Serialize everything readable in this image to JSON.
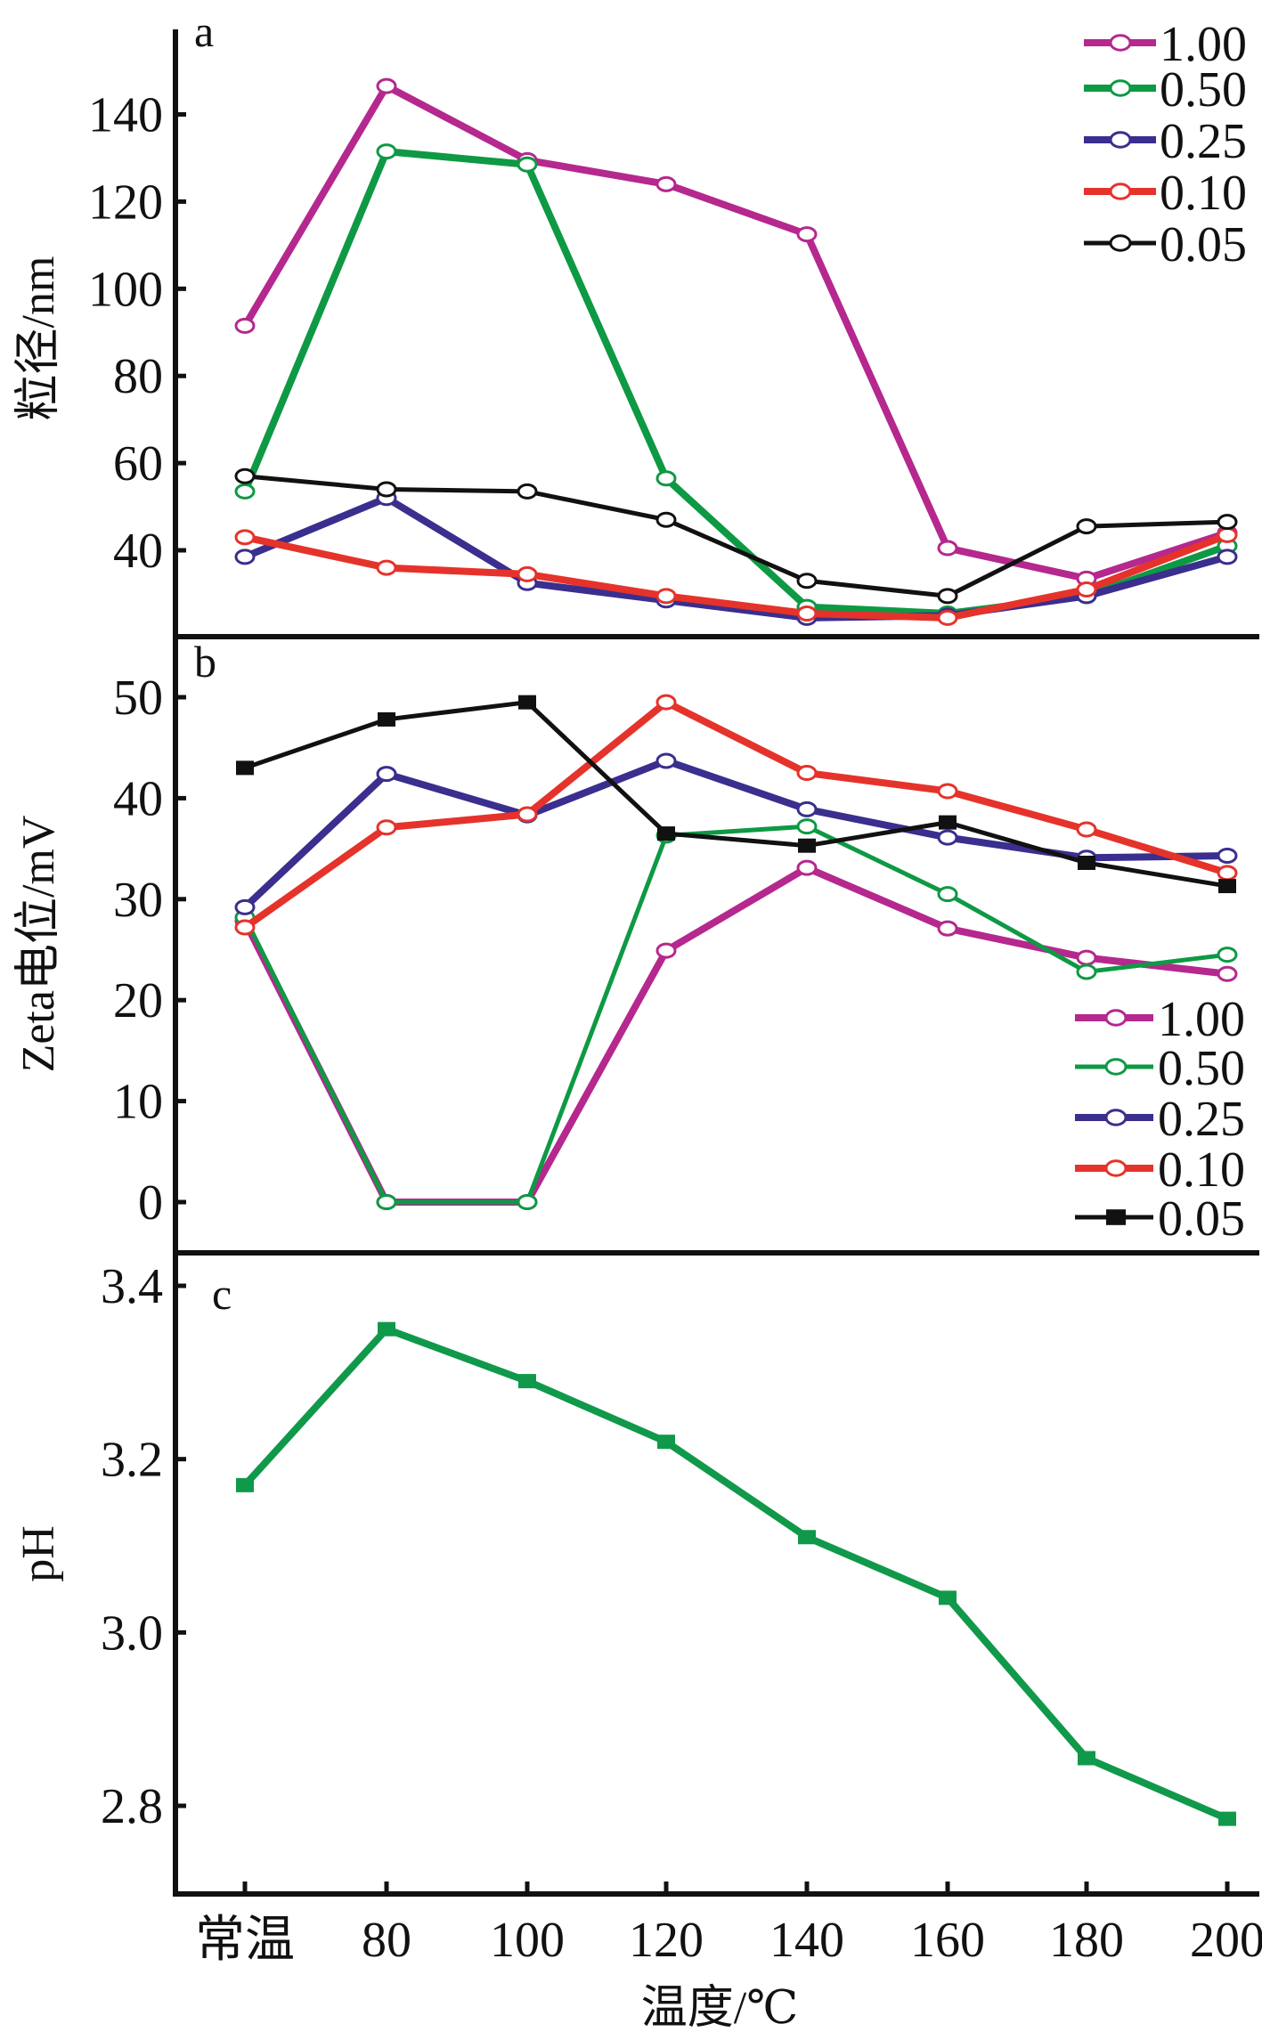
{
  "colors": {
    "s100": "#b5288e",
    "s050": "#0e9944",
    "s025": "#3a2e8e",
    "s010": "#e5332b",
    "s005": "#111111",
    "ph": "#10994a",
    "axis": "#111111"
  },
  "chart_data": [
    {
      "id": "a",
      "panel_label": "a",
      "type": "line",
      "title": "",
      "xlabel": "",
      "ylabel": "粒径/nm",
      "categories": [
        "常温",
        "80",
        "100",
        "120",
        "140",
        "160",
        "180",
        "200"
      ],
      "ylim": [
        20,
        160
      ],
      "yticks": [
        40,
        60,
        80,
        100,
        120,
        140
      ],
      "ytick_labels": [
        "40",
        "60",
        "80",
        "100",
        "120",
        "140"
      ],
      "grid": false,
      "legend_position": "top-right",
      "series": [
        {
          "name": "1.00",
          "color_key": "s100",
          "marker": "open-circle",
          "width": "thick",
          "values": [
            91.5,
            146.5,
            129.5,
            124,
            112.5,
            40.5,
            33.5,
            44
          ]
        },
        {
          "name": "0.50",
          "color_key": "s050",
          "marker": "open-circle",
          "width": "thick",
          "values": [
            53.5,
            131.5,
            128.5,
            56.5,
            27,
            25.5,
            29.5,
            41
          ]
        },
        {
          "name": "0.25",
          "color_key": "s025",
          "marker": "open-circle",
          "width": "thick",
          "values": [
            38.5,
            52,
            32.5,
            28.5,
            24.5,
            25,
            29.5,
            38.5
          ]
        },
        {
          "name": "0.10",
          "color_key": "s010",
          "marker": "open-circle",
          "width": "thick",
          "values": [
            43,
            36,
            34.5,
            29.5,
            25.5,
            24.5,
            31,
            43.5
          ]
        },
        {
          "name": "0.05",
          "color_key": "s005",
          "marker": "open-circle",
          "width": "thin",
          "values": [
            57,
            54,
            53.5,
            47,
            33,
            29.5,
            45.5,
            46.5
          ]
        }
      ]
    },
    {
      "id": "b",
      "panel_label": "b",
      "type": "line",
      "title": "",
      "xlabel": "",
      "ylabel": "Zeta电位/mV",
      "categories": [
        "常温",
        "80",
        "100",
        "120",
        "140",
        "160",
        "180",
        "200"
      ],
      "ylim": [
        -5,
        56
      ],
      "yticks": [
        0,
        10,
        20,
        30,
        40,
        50
      ],
      "ytick_labels": [
        "0",
        "10",
        "20",
        "30",
        "40",
        "50"
      ],
      "grid": false,
      "legend_position": "bottom-right",
      "series": [
        {
          "name": "1.00",
          "color_key": "s100",
          "marker": "open-circle",
          "width": "thick",
          "values": [
            27.8,
            0,
            0,
            24.9,
            33.1,
            27.1,
            24.2,
            22.6
          ]
        },
        {
          "name": "0.50",
          "color_key": "s050",
          "marker": "open-circle",
          "width": "thin",
          "values": [
            28.2,
            0,
            0,
            36.3,
            37.2,
            30.5,
            22.8,
            24.5
          ]
        },
        {
          "name": "0.25",
          "color_key": "s025",
          "marker": "open-circle",
          "width": "thick",
          "values": [
            29.2,
            42.4,
            38.3,
            43.7,
            38.9,
            36.1,
            34.1,
            34.3
          ]
        },
        {
          "name": "0.10",
          "color_key": "s010",
          "marker": "open-circle",
          "width": "thick",
          "values": [
            27.2,
            37.1,
            38.4,
            49.5,
            42.5,
            40.7,
            36.9,
            32.6
          ]
        },
        {
          "name": "0.05",
          "color_key": "s005",
          "marker": "filled-square",
          "width": "thin",
          "values": [
            43,
            47.8,
            49.5,
            36.5,
            35.3,
            37.6,
            33.6,
            31.3
          ]
        }
      ]
    },
    {
      "id": "c",
      "panel_label": "c",
      "type": "line",
      "title": "",
      "xlabel": "温度/℃",
      "ylabel": "pH",
      "categories": [
        "常温",
        "80",
        "100",
        "120",
        "140",
        "160",
        "180",
        "200"
      ],
      "ylim": [
        2.7,
        3.44
      ],
      "yticks": [
        2.8,
        3.0,
        3.2,
        3.4
      ],
      "ytick_labels": [
        "2.8",
        "3.0",
        "3.2",
        "3.4"
      ],
      "grid": false,
      "series": [
        {
          "name": "pH",
          "color_key": "ph",
          "marker": "filled-square",
          "width": "thick",
          "values": [
            3.17,
            3.35,
            3.29,
            3.22,
            3.11,
            3.04,
            2.855,
            2.785
          ]
        }
      ]
    }
  ]
}
